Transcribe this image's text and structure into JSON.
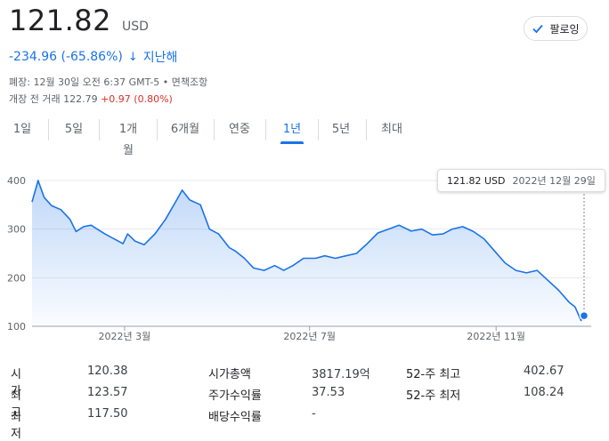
{
  "quote": {
    "price": "121.82",
    "currency": "USD",
    "change": "-234.96 (-65.86%)",
    "change_arrow": "↓",
    "period": "지난해",
    "close_info": "폐장: 12월 30일 오전 6:37 GMT-5",
    "disclaimer": "면책조항",
    "premarket_label": "개장 전 거래 122.79",
    "premarket_change": "+0.97 (0.80%)"
  },
  "follow_button": {
    "label": "팔로잉"
  },
  "tabs": [
    {
      "label": "1일",
      "active": false
    },
    {
      "label": "5일",
      "active": false
    },
    {
      "label": "1개월",
      "active": false
    },
    {
      "label": "6개월",
      "active": false
    },
    {
      "label": "연중",
      "active": false
    },
    {
      "label": "1년",
      "active": true
    },
    {
      "label": "5년",
      "active": false
    },
    {
      "label": "최대",
      "active": false
    }
  ],
  "tooltip": {
    "value": "121.82 USD",
    "date": "2022년 12월 29일"
  },
  "chart_data": {
    "type": "area",
    "xlabel": "",
    "ylabel": "",
    "ylim": [
      100,
      400
    ],
    "yticks": [
      "400",
      "300",
      "200",
      "100"
    ],
    "xticks": [
      "2022년 3월",
      "2022년 7월",
      "2022년 11월"
    ],
    "x_range": [
      "2021-12-30",
      "2022-12-29"
    ],
    "line_color": "#1a73e8",
    "grid": "horizontal",
    "points": [
      [
        "2021-12-30",
        356
      ],
      [
        "2022-01-03",
        400
      ],
      [
        "2022-01-07",
        365
      ],
      [
        "2022-01-12",
        348
      ],
      [
        "2022-01-18",
        340
      ],
      [
        "2022-01-24",
        320
      ],
      [
        "2022-01-28",
        295
      ],
      [
        "2022-02-02",
        305
      ],
      [
        "2022-02-07",
        308
      ],
      [
        "2022-02-11",
        300
      ],
      [
        "2022-02-16",
        290
      ],
      [
        "2022-02-22",
        280
      ],
      [
        "2022-02-28",
        270
      ],
      [
        "2022-03-03",
        290
      ],
      [
        "2022-03-08",
        275
      ],
      [
        "2022-03-14",
        268
      ],
      [
        "2022-03-21",
        290
      ],
      [
        "2022-03-28",
        320
      ],
      [
        "2022-04-04",
        358
      ],
      [
        "2022-04-08",
        380
      ],
      [
        "2022-04-13",
        360
      ],
      [
        "2022-04-20",
        350
      ],
      [
        "2022-04-26",
        300
      ],
      [
        "2022-05-02",
        290
      ],
      [
        "2022-05-09",
        262
      ],
      [
        "2022-05-13",
        255
      ],
      [
        "2022-05-19",
        240
      ],
      [
        "2022-05-25",
        220
      ],
      [
        "2022-06-01",
        215
      ],
      [
        "2022-06-08",
        225
      ],
      [
        "2022-06-14",
        215
      ],
      [
        "2022-06-20",
        225
      ],
      [
        "2022-06-27",
        240
      ],
      [
        "2022-07-05",
        240
      ],
      [
        "2022-07-11",
        245
      ],
      [
        "2022-07-18",
        240
      ],
      [
        "2022-07-25",
        245
      ],
      [
        "2022-08-01",
        250
      ],
      [
        "2022-08-08",
        270
      ],
      [
        "2022-08-15",
        292
      ],
      [
        "2022-08-22",
        300
      ],
      [
        "2022-08-29",
        308
      ],
      [
        "2022-09-06",
        296
      ],
      [
        "2022-09-13",
        300
      ],
      [
        "2022-09-20",
        288
      ],
      [
        "2022-09-27",
        290
      ],
      [
        "2022-10-03",
        300
      ],
      [
        "2022-10-10",
        305
      ],
      [
        "2022-10-17",
        295
      ],
      [
        "2022-10-24",
        280
      ],
      [
        "2022-10-31",
        255
      ],
      [
        "2022-11-07",
        230
      ],
      [
        "2022-11-14",
        215
      ],
      [
        "2022-11-21",
        210
      ],
      [
        "2022-11-28",
        215
      ],
      [
        "2022-12-05",
        195
      ],
      [
        "2022-12-12",
        175
      ],
      [
        "2022-12-19",
        150
      ],
      [
        "2022-12-23",
        140
      ],
      [
        "2022-12-27",
        112
      ],
      [
        "2022-12-29",
        121.82
      ]
    ]
  },
  "stats": [
    {
      "label": "시가",
      "value": "120.38"
    },
    {
      "label": "최고",
      "value": "123.57"
    },
    {
      "label": "최저",
      "value": "117.50"
    },
    {
      "label": "시가총액",
      "value": "3817.19억"
    },
    {
      "label": "주가수익률",
      "value": "37.53"
    },
    {
      "label": "배당수익률",
      "value": "-"
    },
    {
      "label": "52-주 최고",
      "value": "402.67"
    },
    {
      "label": "52-주 최저",
      "value": "108.24"
    }
  ]
}
